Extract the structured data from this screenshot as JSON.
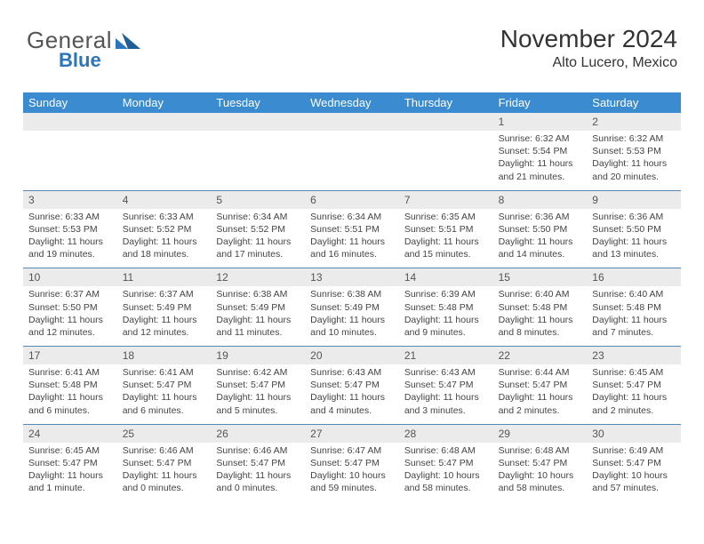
{
  "brand": {
    "general": "General",
    "blue": "Blue",
    "accent": "#2a75bb"
  },
  "header": {
    "title": "November 2024",
    "subtitle": "Alto Lucero, Mexico"
  },
  "colors": {
    "header_bar": "#3b8bd0",
    "header_text": "#ffffff",
    "daynum_bg": "#ebebeb",
    "sep": "#5a88b5",
    "body_text": "#444444"
  },
  "weekdays": [
    "Sunday",
    "Monday",
    "Tuesday",
    "Wednesday",
    "Thursday",
    "Friday",
    "Saturday"
  ],
  "weeks": [
    [
      {
        "n": "",
        "body": ""
      },
      {
        "n": "",
        "body": ""
      },
      {
        "n": "",
        "body": ""
      },
      {
        "n": "",
        "body": ""
      },
      {
        "n": "",
        "body": ""
      },
      {
        "n": "1",
        "body": "Sunrise: 6:32 AM\nSunset: 5:54 PM\nDaylight: 11 hours and 21 minutes."
      },
      {
        "n": "2",
        "body": "Sunrise: 6:32 AM\nSunset: 5:53 PM\nDaylight: 11 hours and 20 minutes."
      }
    ],
    [
      {
        "n": "3",
        "body": "Sunrise: 6:33 AM\nSunset: 5:53 PM\nDaylight: 11 hours and 19 minutes."
      },
      {
        "n": "4",
        "body": "Sunrise: 6:33 AM\nSunset: 5:52 PM\nDaylight: 11 hours and 18 minutes."
      },
      {
        "n": "5",
        "body": "Sunrise: 6:34 AM\nSunset: 5:52 PM\nDaylight: 11 hours and 17 minutes."
      },
      {
        "n": "6",
        "body": "Sunrise: 6:34 AM\nSunset: 5:51 PM\nDaylight: 11 hours and 16 minutes."
      },
      {
        "n": "7",
        "body": "Sunrise: 6:35 AM\nSunset: 5:51 PM\nDaylight: 11 hours and 15 minutes."
      },
      {
        "n": "8",
        "body": "Sunrise: 6:36 AM\nSunset: 5:50 PM\nDaylight: 11 hours and 14 minutes."
      },
      {
        "n": "9",
        "body": "Sunrise: 6:36 AM\nSunset: 5:50 PM\nDaylight: 11 hours and 13 minutes."
      }
    ],
    [
      {
        "n": "10",
        "body": "Sunrise: 6:37 AM\nSunset: 5:50 PM\nDaylight: 11 hours and 12 minutes."
      },
      {
        "n": "11",
        "body": "Sunrise: 6:37 AM\nSunset: 5:49 PM\nDaylight: 11 hours and 12 minutes."
      },
      {
        "n": "12",
        "body": "Sunrise: 6:38 AM\nSunset: 5:49 PM\nDaylight: 11 hours and 11 minutes."
      },
      {
        "n": "13",
        "body": "Sunrise: 6:38 AM\nSunset: 5:49 PM\nDaylight: 11 hours and 10 minutes."
      },
      {
        "n": "14",
        "body": "Sunrise: 6:39 AM\nSunset: 5:48 PM\nDaylight: 11 hours and 9 minutes."
      },
      {
        "n": "15",
        "body": "Sunrise: 6:40 AM\nSunset: 5:48 PM\nDaylight: 11 hours and 8 minutes."
      },
      {
        "n": "16",
        "body": "Sunrise: 6:40 AM\nSunset: 5:48 PM\nDaylight: 11 hours and 7 minutes."
      }
    ],
    [
      {
        "n": "17",
        "body": "Sunrise: 6:41 AM\nSunset: 5:48 PM\nDaylight: 11 hours and 6 minutes."
      },
      {
        "n": "18",
        "body": "Sunrise: 6:41 AM\nSunset: 5:47 PM\nDaylight: 11 hours and 6 minutes."
      },
      {
        "n": "19",
        "body": "Sunrise: 6:42 AM\nSunset: 5:47 PM\nDaylight: 11 hours and 5 minutes."
      },
      {
        "n": "20",
        "body": "Sunrise: 6:43 AM\nSunset: 5:47 PM\nDaylight: 11 hours and 4 minutes."
      },
      {
        "n": "21",
        "body": "Sunrise: 6:43 AM\nSunset: 5:47 PM\nDaylight: 11 hours and 3 minutes."
      },
      {
        "n": "22",
        "body": "Sunrise: 6:44 AM\nSunset: 5:47 PM\nDaylight: 11 hours and 2 minutes."
      },
      {
        "n": "23",
        "body": "Sunrise: 6:45 AM\nSunset: 5:47 PM\nDaylight: 11 hours and 2 minutes."
      }
    ],
    [
      {
        "n": "24",
        "body": "Sunrise: 6:45 AM\nSunset: 5:47 PM\nDaylight: 11 hours and 1 minute."
      },
      {
        "n": "25",
        "body": "Sunrise: 6:46 AM\nSunset: 5:47 PM\nDaylight: 11 hours and 0 minutes."
      },
      {
        "n": "26",
        "body": "Sunrise: 6:46 AM\nSunset: 5:47 PM\nDaylight: 11 hours and 0 minutes."
      },
      {
        "n": "27",
        "body": "Sunrise: 6:47 AM\nSunset: 5:47 PM\nDaylight: 10 hours and 59 minutes."
      },
      {
        "n": "28",
        "body": "Sunrise: 6:48 AM\nSunset: 5:47 PM\nDaylight: 10 hours and 58 minutes."
      },
      {
        "n": "29",
        "body": "Sunrise: 6:48 AM\nSunset: 5:47 PM\nDaylight: 10 hours and 58 minutes."
      },
      {
        "n": "30",
        "body": "Sunrise: 6:49 AM\nSunset: 5:47 PM\nDaylight: 10 hours and 57 minutes."
      }
    ]
  ]
}
